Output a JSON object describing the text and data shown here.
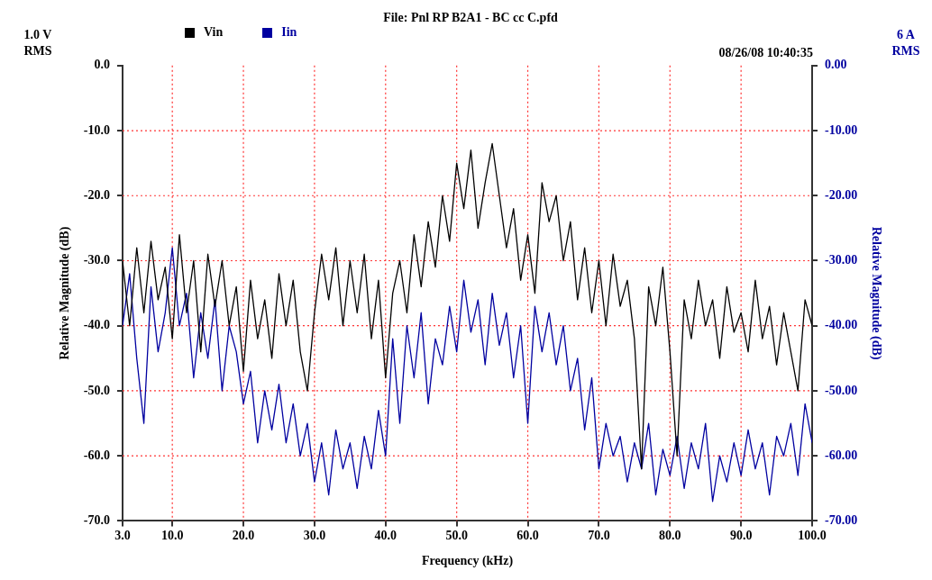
{
  "chart_data": {
    "type": "line",
    "title": "File: Pnl RP B2A1 - BC cc C.pfd",
    "xlabel": "Frequency (kHz)",
    "ylabel": "Relative Magnitude (dB)",
    "y2label": "Relative Magnitude (dB)",
    "annotations": [
      "1.0 V RMS",
      "6 A RMS",
      "08/26/08 10:40:35"
    ],
    "x": [
      3,
      4,
      5,
      6,
      7,
      8,
      9,
      10,
      11,
      12,
      13,
      14,
      15,
      16,
      17,
      18,
      19,
      20,
      21,
      22,
      23,
      24,
      25,
      26,
      27,
      28,
      29,
      30,
      31,
      32,
      33,
      34,
      35,
      36,
      37,
      38,
      39,
      40,
      41,
      42,
      43,
      44,
      45,
      46,
      47,
      48,
      49,
      50,
      51,
      52,
      53,
      54,
      55,
      56,
      57,
      58,
      59,
      60,
      61,
      62,
      63,
      64,
      65,
      66,
      67,
      68,
      69,
      70,
      71,
      72,
      73,
      74,
      75,
      76,
      77,
      78,
      79,
      80,
      81,
      82,
      83,
      84,
      85,
      86,
      87,
      88,
      89,
      90,
      91,
      92,
      93,
      94,
      95,
      96,
      97,
      98,
      99,
      100
    ],
    "series": [
      {
        "name": "Vin",
        "color": "#000000",
        "values": [
          -30,
          -40,
          -28,
          -38,
          -27,
          -36,
          -31,
          -42,
          -26,
          -38,
          -30,
          -44,
          -29,
          -37,
          -30,
          -40,
          -34,
          -47,
          -33,
          -42,
          -36,
          -45,
          -32,
          -40,
          -33,
          -44,
          -50,
          -38,
          -29,
          -36,
          -28,
          -40,
          -30,
          -38,
          -29,
          -42,
          -33,
          -48,
          -35,
          -30,
          -38,
          -26,
          -34,
          -24,
          -31,
          -20,
          -27,
          -15,
          -22,
          -13,
          -25,
          -18,
          -12,
          -20,
          -28,
          -22,
          -33,
          -26,
          -35,
          -18,
          -24,
          -20,
          -30,
          -24,
          -36,
          -28,
          -38,
          -30,
          -40,
          -29,
          -37,
          -33,
          -42,
          -62,
          -34,
          -40,
          -31,
          -44,
          -60,
          -36,
          -42,
          -33,
          -40,
          -36,
          -45,
          -34,
          -41,
          -38,
          -44,
          -33,
          -42,
          -37,
          -46,
          -38,
          -44,
          -50,
          -36,
          -40
        ]
      },
      {
        "name": "Iin",
        "color": "#0000a0",
        "axis": "y2",
        "values": [
          -40,
          -32,
          -45,
          -55,
          -34,
          -44,
          -38,
          -28,
          -40,
          -35,
          -48,
          -38,
          -45,
          -36,
          -50,
          -40,
          -44,
          -52,
          -47,
          -58,
          -50,
          -56,
          -49,
          -58,
          -52,
          -60,
          -55,
          -64,
          -58,
          -66,
          -56,
          -62,
          -58,
          -65,
          -57,
          -62,
          -53,
          -60,
          -42,
          -55,
          -40,
          -48,
          -38,
          -52,
          -42,
          -46,
          -37,
          -44,
          -33,
          -41,
          -36,
          -46,
          -35,
          -43,
          -38,
          -48,
          -40,
          -55,
          -37,
          -44,
          -38,
          -46,
          -40,
          -50,
          -45,
          -56,
          -48,
          -62,
          -55,
          -60,
          -57,
          -64,
          -58,
          -62,
          -55,
          -66,
          -59,
          -63,
          -57,
          -65,
          -58,
          -62,
          -55,
          -67,
          -60,
          -64,
          -58,
          -63,
          -56,
          -62,
          -58,
          -66,
          -57,
          -60,
          -55,
          -63,
          -52,
          -58
        ]
      }
    ],
    "xlim": [
      3,
      100
    ],
    "xticks": [
      {
        "value": 3,
        "label": "3.0"
      },
      {
        "value": 10,
        "label": "10.0"
      },
      {
        "value": 20,
        "label": "20.0"
      },
      {
        "value": 30,
        "label": "30.0"
      },
      {
        "value": 40,
        "label": "40.0"
      },
      {
        "value": 50,
        "label": "50.0"
      },
      {
        "value": 60,
        "label": "60.0"
      },
      {
        "value": 70,
        "label": "70.0"
      },
      {
        "value": 80,
        "label": "80.0"
      },
      {
        "value": 90,
        "label": "90.0"
      },
      {
        "value": 100,
        "label": "100.0"
      }
    ],
    "ylim": [
      -70,
      0
    ],
    "yticks": [
      {
        "value": 0,
        "label": "0.0"
      },
      {
        "value": -10,
        "label": "-10.0"
      },
      {
        "value": -20,
        "label": "-20.0"
      },
      {
        "value": -30,
        "label": "-30.0"
      },
      {
        "value": -40,
        "label": "-40.0"
      },
      {
        "value": -50,
        "label": "-50.0"
      },
      {
        "value": -60,
        "label": "-60.0"
      },
      {
        "value": -70,
        "label": "-70.0"
      }
    ],
    "y2lim": [
      -70,
      0
    ],
    "y2ticks": [
      {
        "value": 0,
        "label": "0.00"
      },
      {
        "value": -10,
        "label": "-10.00"
      },
      {
        "value": -20,
        "label": "-20.00"
      },
      {
        "value": -30,
        "label": "-30.00"
      },
      {
        "value": -40,
        "label": "-40.00"
      },
      {
        "value": -50,
        "label": "-50.00"
      },
      {
        "value": -60,
        "label": "-60.00"
      },
      {
        "value": -70,
        "label": "-70.00"
      }
    ],
    "grid": true,
    "legend": "top",
    "marker": "none",
    "line_style": "solid"
  }
}
